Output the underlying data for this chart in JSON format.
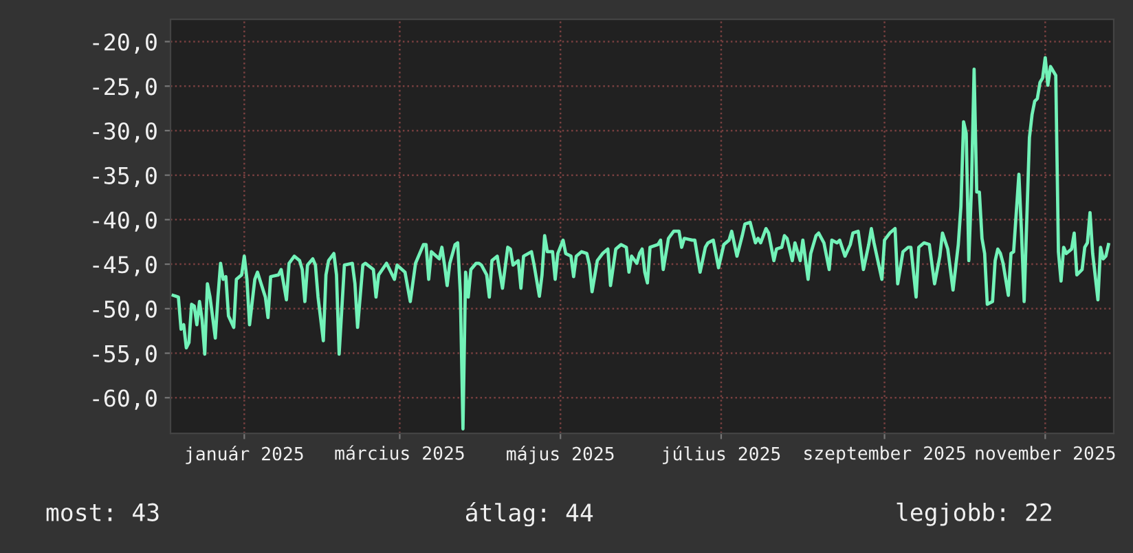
{
  "chart_data": {
    "type": "line",
    "color": "#72f2b8",
    "grid": true,
    "xlim": [
      "2024-12-04",
      "2025-11-27"
    ],
    "xticks": [
      {
        "value": "2025-01-01",
        "label": "január 2025"
      },
      {
        "value": "2025-03-01",
        "label": "március 2025"
      },
      {
        "value": "2025-05-01",
        "label": "május 2025"
      },
      {
        "value": "2025-07-01",
        "label": "július 2025"
      },
      {
        "value": "2025-09-01",
        "label": "szeptember 2025"
      },
      {
        "value": "2025-11-01",
        "label": "november 2025"
      }
    ],
    "ylim": [
      -64,
      -17.5
    ],
    "yticks": [
      {
        "value": -20,
        "label": "-20,0"
      },
      {
        "value": -25,
        "label": "-25,0"
      },
      {
        "value": -30,
        "label": "-30,0"
      },
      {
        "value": -35,
        "label": "-35,0"
      },
      {
        "value": -40,
        "label": "-40,0"
      },
      {
        "value": -45,
        "label": "-45,0"
      },
      {
        "value": -50,
        "label": "-50,0"
      },
      {
        "value": -55,
        "label": "-55,0"
      },
      {
        "value": -60,
        "label": "-60,0"
      }
    ],
    "x": [
      "2024-12-05",
      "2024-12-07",
      "2024-12-08",
      "2024-12-09",
      "2024-12-10",
      "2024-12-11",
      "2024-12-12",
      "2024-12-13",
      "2024-12-14",
      "2024-12-15",
      "2024-12-16",
      "2024-12-17",
      "2024-12-18",
      "2024-12-19",
      "2024-12-21",
      "2024-12-22",
      "2024-12-23",
      "2024-12-24",
      "2024-12-25",
      "2024-12-26",
      "2024-12-28",
      "2024-12-29",
      "2024-12-31",
      "2025-01-01",
      "2025-01-02",
      "2025-01-03",
      "2025-01-05",
      "2025-01-06",
      "2025-01-09",
      "2025-01-10",
      "2025-01-11",
      "2025-01-14",
      "2025-01-15",
      "2025-01-17",
      "2025-01-18",
      "2025-01-20",
      "2025-01-22",
      "2025-01-23",
      "2025-01-24",
      "2025-01-25",
      "2025-01-27",
      "2025-01-28",
      "2025-01-29",
      "2025-01-31",
      "2025-02-01",
      "2025-02-02",
      "2025-02-04",
      "2025-02-05",
      "2025-02-06",
      "2025-02-08",
      "2025-02-11",
      "2025-02-12",
      "2025-02-13",
      "2025-02-15",
      "2025-02-16",
      "2025-02-19",
      "2025-02-20",
      "2025-02-21",
      "2025-02-24",
      "2025-02-27",
      "2025-02-28",
      "2025-03-03",
      "2025-03-05",
      "2025-03-07",
      "2025-03-10",
      "2025-03-11",
      "2025-03-12",
      "2025-03-13",
      "2025-03-16",
      "2025-03-17",
      "2025-03-18",
      "2025-03-19",
      "2025-03-20",
      "2025-03-22",
      "2025-03-23",
      "2025-03-24",
      "2025-03-25",
      "2025-03-26",
      "2025-03-27",
      "2025-03-28",
      "2025-03-30",
      "2025-03-31",
      "2025-04-01",
      "2025-04-03",
      "2025-04-04",
      "2025-04-05",
      "2025-04-07",
      "2025-04-09",
      "2025-04-11",
      "2025-04-12",
      "2025-04-13",
      "2025-04-15",
      "2025-04-16",
      "2025-04-17",
      "2025-04-20",
      "2025-04-21",
      "2025-04-23",
      "2025-04-24",
      "2025-04-25",
      "2025-04-26",
      "2025-04-28",
      "2025-04-29",
      "2025-04-30",
      "2025-05-02",
      "2025-05-03",
      "2025-05-05",
      "2025-05-06",
      "2025-05-07",
      "2025-05-09",
      "2025-05-11",
      "2025-05-12",
      "2025-05-13",
      "2025-05-15",
      "2025-05-17",
      "2025-05-19",
      "2025-05-20",
      "2025-05-22",
      "2025-05-24",
      "2025-05-26",
      "2025-05-27",
      "2025-05-28",
      "2025-05-30",
      "2025-05-31",
      "2025-06-01",
      "2025-06-02",
      "2025-06-03",
      "2025-06-04",
      "2025-06-07",
      "2025-06-08",
      "2025-06-09",
      "2025-06-11",
      "2025-06-13",
      "2025-06-15",
      "2025-06-16",
      "2025-06-17",
      "2025-06-20",
      "2025-06-21",
      "2025-06-23",
      "2025-06-25",
      "2025-06-26",
      "2025-06-28",
      "2025-06-30",
      "2025-07-02",
      "2025-07-04",
      "2025-07-05",
      "2025-07-07",
      "2025-07-09",
      "2025-07-10",
      "2025-07-12",
      "2025-07-14",
      "2025-07-15",
      "2025-07-16",
      "2025-07-18",
      "2025-07-19",
      "2025-07-21",
      "2025-07-22",
      "2025-07-24",
      "2025-07-25",
      "2025-07-26",
      "2025-07-28",
      "2025-07-29",
      "2025-07-31",
      "2025-08-01",
      "2025-08-03",
      "2025-08-04",
      "2025-08-06",
      "2025-08-07",
      "2025-08-09",
      "2025-08-11",
      "2025-08-12",
      "2025-08-14",
      "2025-08-15",
      "2025-08-17",
      "2025-08-19",
      "2025-08-20",
      "2025-08-22",
      "2025-08-24",
      "2025-08-26",
      "2025-08-27",
      "2025-08-28",
      "2025-08-31",
      "2025-09-01",
      "2025-09-03",
      "2025-09-05",
      "2025-09-06",
      "2025-09-08",
      "2025-09-10",
      "2025-09-11",
      "2025-09-13",
      "2025-09-14",
      "2025-09-16",
      "2025-09-18",
      "2025-09-20",
      "2025-09-22",
      "2025-09-23",
      "2025-09-25",
      "2025-09-27",
      "2025-09-29",
      "2025-09-30",
      "2025-10-01",
      "2025-10-02",
      "2025-10-03",
      "2025-10-04",
      "2025-10-05",
      "2025-10-06",
      "2025-10-07",
      "2025-10-08",
      "2025-10-09",
      "2025-10-10",
      "2025-10-12",
      "2025-10-13",
      "2025-10-14",
      "2025-10-15",
      "2025-10-16",
      "2025-10-18",
      "2025-10-19",
      "2025-10-20",
      "2025-10-22",
      "2025-10-23",
      "2025-10-24",
      "2025-10-26",
      "2025-10-27",
      "2025-10-28",
      "2025-10-29",
      "2025-10-30",
      "2025-10-31",
      "2025-11-01",
      "2025-11-02",
      "2025-11-03",
      "2025-11-05",
      "2025-11-06",
      "2025-11-07",
      "2025-11-08",
      "2025-11-09",
      "2025-11-11",
      "2025-11-12",
      "2025-11-13",
      "2025-11-15",
      "2025-11-16",
      "2025-11-17",
      "2025-11-18",
      "2025-11-19",
      "2025-11-21",
      "2025-11-22",
      "2025-11-23",
      "2025-11-24",
      "2025-11-25"
    ],
    "values": [
      -48.5,
      -48.7,
      -52.3,
      -51.8,
      -54.4,
      -53.8,
      -49.5,
      -49.7,
      -51.8,
      -49.2,
      -51.3,
      -55.1,
      -47.2,
      -48.7,
      -53.3,
      -48.7,
      -44.9,
      -46.7,
      -46.4,
      -50.8,
      -52.1,
      -46.7,
      -46.2,
      -44.1,
      -46.7,
      -51.8,
      -46.7,
      -45.9,
      -48.7,
      -51.0,
      -46.4,
      -46.2,
      -45.6,
      -49.0,
      -44.9,
      -44.1,
      -44.6,
      -45.6,
      -49.2,
      -45.1,
      -44.4,
      -45.1,
      -48.7,
      -53.6,
      -46.2,
      -44.6,
      -43.8,
      -46.2,
      -55.1,
      -45.1,
      -44.9,
      -47.2,
      -52.1,
      -45.1,
      -44.9,
      -45.6,
      -48.7,
      -46.2,
      -44.9,
      -46.7,
      -45.1,
      -45.9,
      -49.2,
      -44.9,
      -42.8,
      -42.8,
      -46.7,
      -43.6,
      -44.4,
      -43.1,
      -45.1,
      -47.4,
      -44.9,
      -42.8,
      -42.6,
      -48.2,
      -63.5,
      -45.9,
      -48.7,
      -45.6,
      -44.9,
      -44.9,
      -45.1,
      -46.2,
      -48.7,
      -44.6,
      -44.1,
      -47.7,
      -43.1,
      -43.3,
      -45.1,
      -44.6,
      -47.7,
      -44.1,
      -43.6,
      -45.1,
      -48.6,
      -46.2,
      -41.8,
      -43.6,
      -43.6,
      -46.7,
      -43.8,
      -42.3,
      -43.8,
      -44.1,
      -46.4,
      -44.1,
      -43.6,
      -43.8,
      -45.1,
      -48.1,
      -44.6,
      -43.8,
      -43.3,
      -47.4,
      -43.3,
      -42.8,
      -43.1,
      -45.9,
      -44.1,
      -44.9,
      -43.8,
      -43.3,
      -45.9,
      -47.1,
      -43.1,
      -42.8,
      -42.3,
      -45.6,
      -42.1,
      -41.3,
      -41.3,
      -43.1,
      -42.1,
      -42.3,
      -42.3,
      -45.9,
      -43.1,
      -42.6,
      -42.3,
      -45.4,
      -42.8,
      -42.3,
      -41.3,
      -44.1,
      -41.8,
      -40.5,
      -40.3,
      -42.6,
      -42.1,
      -42.6,
      -41.0,
      -41.5,
      -44.6,
      -43.3,
      -43.1,
      -41.8,
      -42.1,
      -44.6,
      -42.6,
      -44.6,
      -42.3,
      -46.7,
      -43.8,
      -41.8,
      -41.5,
      -42.6,
      -45.6,
      -42.3,
      -42.6,
      -42.3,
      -44.1,
      -42.8,
      -41.5,
      -41.3,
      -45.6,
      -42.8,
      -41.0,
      -42.6,
      -46.7,
      -42.3,
      -41.5,
      -41.0,
      -47.2,
      -43.6,
      -43.1,
      -43.1,
      -48.7,
      -43.1,
      -42.6,
      -42.8,
      -47.2,
      -44.1,
      -41.5,
      -43.3,
      -47.9,
      -42.8,
      -38.5,
      -29.0,
      -30.3,
      -44.6,
      -36.4,
      -23.1,
      -36.9,
      -36.9,
      -42.1,
      -43.8,
      -49.5,
      -49.2,
      -44.6,
      -43.3,
      -43.8,
      -44.9,
      -48.5,
      -43.8,
      -43.6,
      -34.9,
      -41.5,
      -49.2,
      -30.8,
      -28.2,
      -26.7,
      -26.4,
      -24.6,
      -24.1,
      -21.8,
      -24.9,
      -22.8,
      -23.8,
      -43.6,
      -46.9,
      -43.1,
      -43.8,
      -43.3,
      -41.5,
      -46.2,
      -45.6,
      -43.1,
      -42.6,
      -39.2,
      -43.8,
      -49.0,
      -43.1,
      -44.4,
      -44.1,
      -42.8
    ],
    "annotations": [
      "most: 43",
      "átlag: 44",
      "legjobb: 22"
    ]
  }
}
